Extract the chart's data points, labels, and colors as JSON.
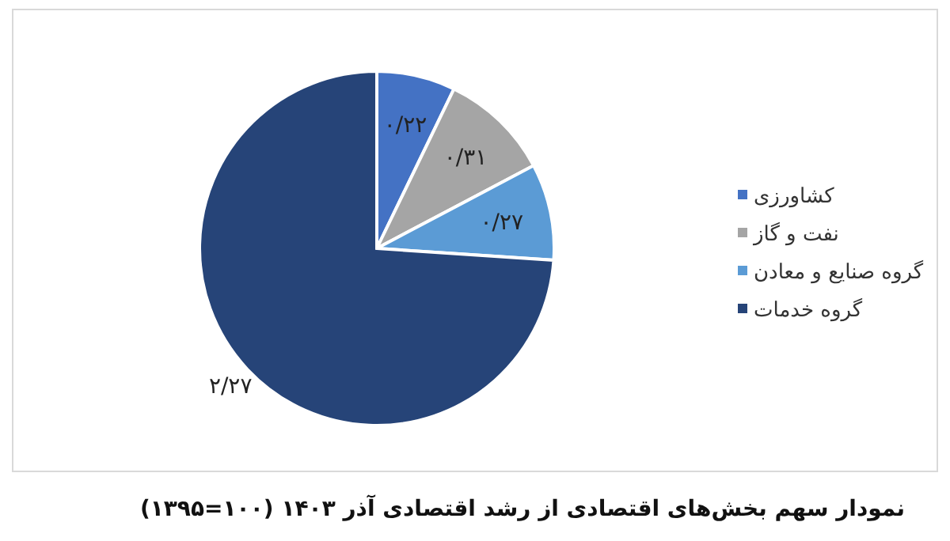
{
  "chart_data": {
    "type": "pie",
    "title": "نمودار سهم بخش‌های اقتصادی از رشد اقتصادی آذر ۱۴۰۳ (۱۰۰=۱۳۹۵)",
    "categories": [
      "کشاورزی",
      "نفت و گاز",
      "گروه صنایع و معادن",
      "گروه خدمات"
    ],
    "values": [
      0.22,
      0.31,
      0.27,
      2.27
    ],
    "value_labels": [
      "۰/۲۲",
      "۰/۳۱",
      "۰/۲۷",
      "۲/۲۷"
    ],
    "colors": [
      "#4472c4",
      "#a5a5a5",
      "#5b9bd5",
      "#264478"
    ],
    "legend": "right"
  }
}
